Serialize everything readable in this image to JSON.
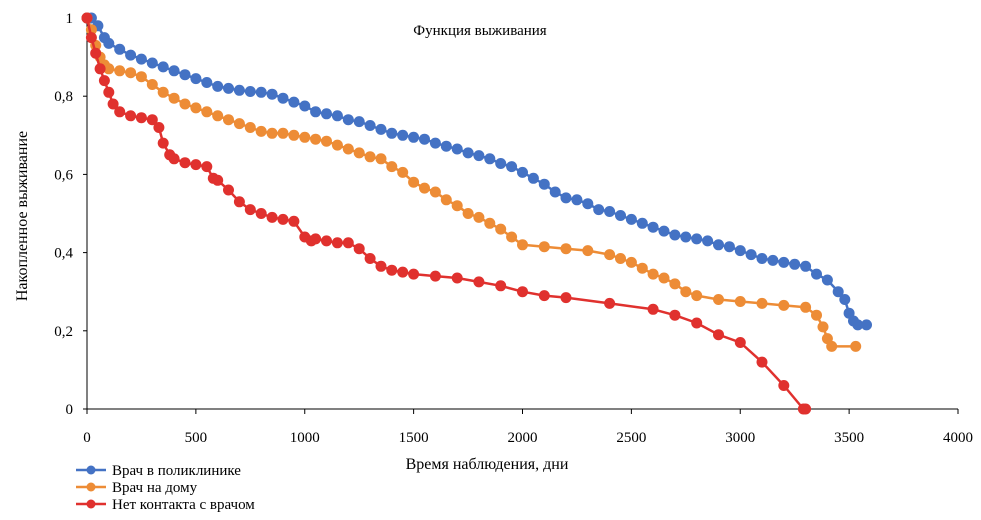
{
  "chart_data": {
    "type": "line",
    "title": "Функция выживания",
    "xlabel": "Время наблюдения, дни",
    "ylabel": "Накопленное выживание",
    "xlim": [
      0,
      4000
    ],
    "ylim": [
      0,
      1
    ],
    "x_ticks": [
      0,
      500,
      1000,
      1500,
      2000,
      2500,
      3000,
      3500,
      4000
    ],
    "x_tick_labels": [
      "0",
      "500",
      "1000",
      "1500",
      "2000",
      "2500",
      "3000",
      "3500",
      "4000"
    ],
    "y_ticks": [
      0,
      0.2,
      0.4,
      0.6,
      0.8,
      1
    ],
    "y_tick_labels": [
      "0",
      "0,2",
      "0,4",
      "0,6",
      "0,8",
      "1"
    ],
    "grid": false,
    "legend_position": "bottom-left",
    "series": [
      {
        "name": "Врач в поликлинике",
        "color": "#4472c4",
        "x": [
          0,
          20,
          50,
          80,
          100,
          150,
          200,
          250,
          300,
          350,
          400,
          450,
          500,
          550,
          600,
          650,
          700,
          750,
          800,
          850,
          900,
          950,
          1000,
          1050,
          1100,
          1150,
          1200,
          1250,
          1300,
          1350,
          1400,
          1450,
          1500,
          1550,
          1600,
          1650,
          1700,
          1750,
          1800,
          1850,
          1900,
          1950,
          2000,
          2050,
          2100,
          2150,
          2200,
          2250,
          2300,
          2350,
          2400,
          2450,
          2500,
          2550,
          2600,
          2650,
          2700,
          2750,
          2800,
          2850,
          2900,
          2950,
          3000,
          3050,
          3100,
          3150,
          3200,
          3250,
          3300,
          3350,
          3400,
          3450,
          3480,
          3500,
          3520,
          3540,
          3580
        ],
        "values": [
          1.0,
          1.0,
          0.98,
          0.95,
          0.935,
          0.92,
          0.905,
          0.895,
          0.885,
          0.875,
          0.865,
          0.855,
          0.845,
          0.835,
          0.825,
          0.82,
          0.815,
          0.812,
          0.81,
          0.805,
          0.795,
          0.785,
          0.775,
          0.76,
          0.755,
          0.75,
          0.74,
          0.735,
          0.725,
          0.715,
          0.705,
          0.7,
          0.695,
          0.69,
          0.68,
          0.672,
          0.665,
          0.655,
          0.648,
          0.64,
          0.628,
          0.62,
          0.605,
          0.59,
          0.575,
          0.555,
          0.54,
          0.535,
          0.525,
          0.51,
          0.505,
          0.495,
          0.485,
          0.475,
          0.465,
          0.455,
          0.445,
          0.44,
          0.435,
          0.43,
          0.42,
          0.415,
          0.405,
          0.395,
          0.385,
          0.38,
          0.375,
          0.37,
          0.365,
          0.345,
          0.33,
          0.3,
          0.28,
          0.245,
          0.225,
          0.215,
          0.215
        ]
      },
      {
        "name": "Врач на дому",
        "color": "#ed8c36",
        "x": [
          0,
          20,
          40,
          60,
          80,
          100,
          150,
          200,
          250,
          300,
          350,
          400,
          450,
          500,
          550,
          600,
          650,
          700,
          750,
          800,
          850,
          900,
          950,
          1000,
          1050,
          1100,
          1150,
          1200,
          1250,
          1300,
          1350,
          1400,
          1450,
          1500,
          1550,
          1600,
          1650,
          1700,
          1750,
          1800,
          1850,
          1900,
          1950,
          2000,
          2100,
          2200,
          2300,
          2400,
          2450,
          2500,
          2550,
          2600,
          2650,
          2700,
          2750,
          2800,
          2900,
          3000,
          3100,
          3200,
          3300,
          3350,
          3380,
          3400,
          3420,
          3530
        ],
        "values": [
          1.0,
          0.97,
          0.93,
          0.9,
          0.88,
          0.87,
          0.865,
          0.86,
          0.85,
          0.83,
          0.81,
          0.795,
          0.78,
          0.77,
          0.76,
          0.75,
          0.74,
          0.73,
          0.72,
          0.71,
          0.705,
          0.705,
          0.7,
          0.695,
          0.69,
          0.685,
          0.675,
          0.665,
          0.655,
          0.645,
          0.64,
          0.62,
          0.605,
          0.58,
          0.565,
          0.555,
          0.535,
          0.52,
          0.5,
          0.49,
          0.475,
          0.46,
          0.44,
          0.42,
          0.415,
          0.41,
          0.405,
          0.395,
          0.385,
          0.375,
          0.36,
          0.345,
          0.335,
          0.32,
          0.3,
          0.29,
          0.28,
          0.275,
          0.27,
          0.265,
          0.26,
          0.24,
          0.21,
          0.18,
          0.16,
          0.16
        ]
      },
      {
        "name": "Нет контакта с врачом",
        "color": "#e0312e",
        "x": [
          0,
          20,
          40,
          60,
          80,
          100,
          120,
          150,
          200,
          250,
          300,
          330,
          350,
          380,
          400,
          450,
          500,
          550,
          580,
          600,
          650,
          700,
          750,
          800,
          850,
          900,
          950,
          1000,
          1030,
          1050,
          1100,
          1150,
          1200,
          1250,
          1300,
          1350,
          1400,
          1450,
          1500,
          1600,
          1700,
          1800,
          1900,
          2000,
          2100,
          2200,
          2400,
          2600,
          2700,
          2800,
          2900,
          3000,
          3100,
          3200,
          3290,
          3300
        ],
        "values": [
          1.0,
          0.95,
          0.91,
          0.87,
          0.84,
          0.81,
          0.78,
          0.76,
          0.75,
          0.745,
          0.74,
          0.72,
          0.68,
          0.65,
          0.64,
          0.63,
          0.625,
          0.62,
          0.59,
          0.585,
          0.56,
          0.53,
          0.51,
          0.5,
          0.49,
          0.485,
          0.48,
          0.44,
          0.43,
          0.435,
          0.43,
          0.425,
          0.425,
          0.41,
          0.385,
          0.365,
          0.355,
          0.35,
          0.345,
          0.34,
          0.335,
          0.325,
          0.315,
          0.3,
          0.29,
          0.285,
          0.27,
          0.255,
          0.24,
          0.22,
          0.19,
          0.17,
          0.12,
          0.06,
          0.0,
          0.0
        ]
      }
    ]
  }
}
